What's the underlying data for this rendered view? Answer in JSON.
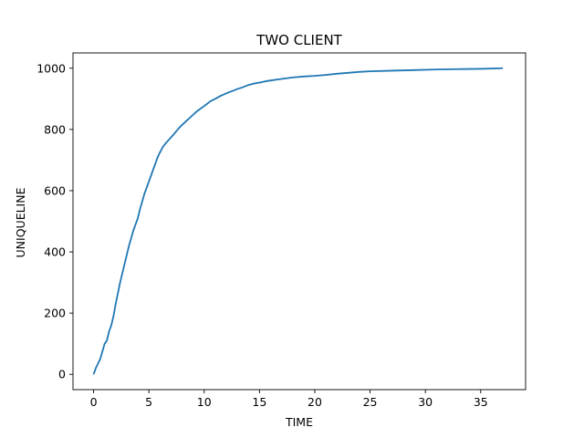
{
  "chart_data": {
    "type": "line",
    "title": "TWO CLIENT",
    "xlabel": "TIME",
    "ylabel": "UNIQUELINE",
    "xlim": [
      -1.86,
      39.06
    ],
    "ylim": [
      -50,
      1050
    ],
    "xticks": [
      0,
      5,
      10,
      15,
      20,
      25,
      30,
      35
    ],
    "yticks": [
      0,
      200,
      400,
      600,
      800,
      1000
    ],
    "grid": false,
    "series_color": "#1f77b4",
    "series": [
      {
        "x": [
          0,
          0.2,
          0.4,
          0.6,
          0.8,
          1.0,
          1.2,
          1.4,
          1.6,
          1.8,
          2.0,
          2.2,
          2.4,
          2.6,
          2.8,
          3.0,
          3.2,
          3.4,
          3.6,
          3.8,
          4.0,
          4.2,
          4.4,
          4.6,
          4.8,
          5.0,
          5.2,
          5.4,
          5.6,
          5.8,
          6.0,
          6.3,
          6.6,
          6.9,
          7.2,
          7.5,
          7.8,
          8.1,
          8.4,
          8.7,
          9.0,
          9.3,
          9.6,
          9.9,
          10.2,
          10.6,
          11.0,
          11.5,
          12.0,
          12.5,
          13.0,
          13.5,
          14.0,
          14.5,
          15.0,
          15.5,
          16.0,
          17.0,
          18.0,
          19.0,
          20.0,
          21.0,
          22.0,
          23.0,
          24.0,
          25.0,
          27.0,
          29.0,
          31.0,
          33.0,
          35.0,
          37.0
        ],
        "y": [
          0,
          20,
          35,
          50,
          75,
          100,
          110,
          140,
          160,
          190,
          230,
          265,
          300,
          330,
          360,
          390,
          420,
          445,
          470,
          490,
          510,
          540,
          565,
          590,
          610,
          630,
          650,
          670,
          690,
          710,
          725,
          745,
          758,
          770,
          782,
          795,
          808,
          818,
          828,
          838,
          848,
          858,
          866,
          874,
          882,
          893,
          900,
          910,
          918,
          925,
          932,
          938,
          945,
          950,
          953,
          957,
          960,
          965,
          970,
          973,
          975,
          978,
          982,
          985,
          988,
          990,
          992,
          994,
          996,
          997,
          998,
          1000
        ]
      }
    ]
  }
}
